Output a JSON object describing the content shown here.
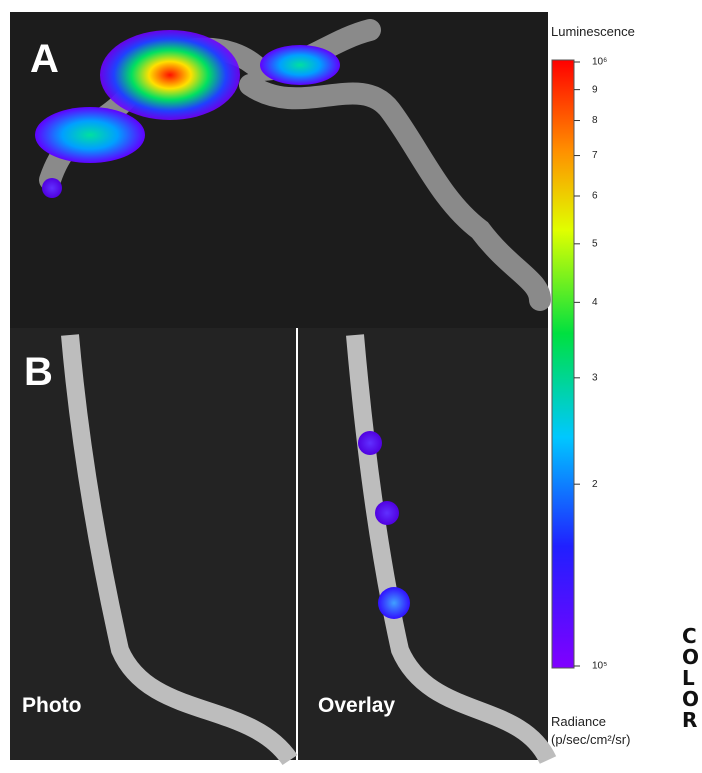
{
  "panels": [
    {
      "letter": "A"
    },
    {
      "letter": "B",
      "captions": [
        "Photo",
        "Overlay"
      ]
    }
  ],
  "colorbar": {
    "title": "Luminescence",
    "scale": "log",
    "lim": [
      100000,
      1000000
    ],
    "ticks": [
      {
        "value": 1000000,
        "label": "10⁶"
      },
      {
        "value": 900000,
        "label": "9"
      },
      {
        "value": 800000,
        "label": "8"
      },
      {
        "value": 700000,
        "label": "7"
      },
      {
        "value": 600000,
        "label": "6"
      },
      {
        "value": 500000,
        "label": "5"
      },
      {
        "value": 400000,
        "label": "4"
      },
      {
        "value": 300000,
        "label": "3"
      },
      {
        "value": 200000,
        "label": "2"
      },
      {
        "value": 100000,
        "label": "10⁵"
      }
    ],
    "unit_lines": [
      "Radiance",
      "(p/sec/cm²/sr)"
    ]
  },
  "side_label": "COLOR"
}
